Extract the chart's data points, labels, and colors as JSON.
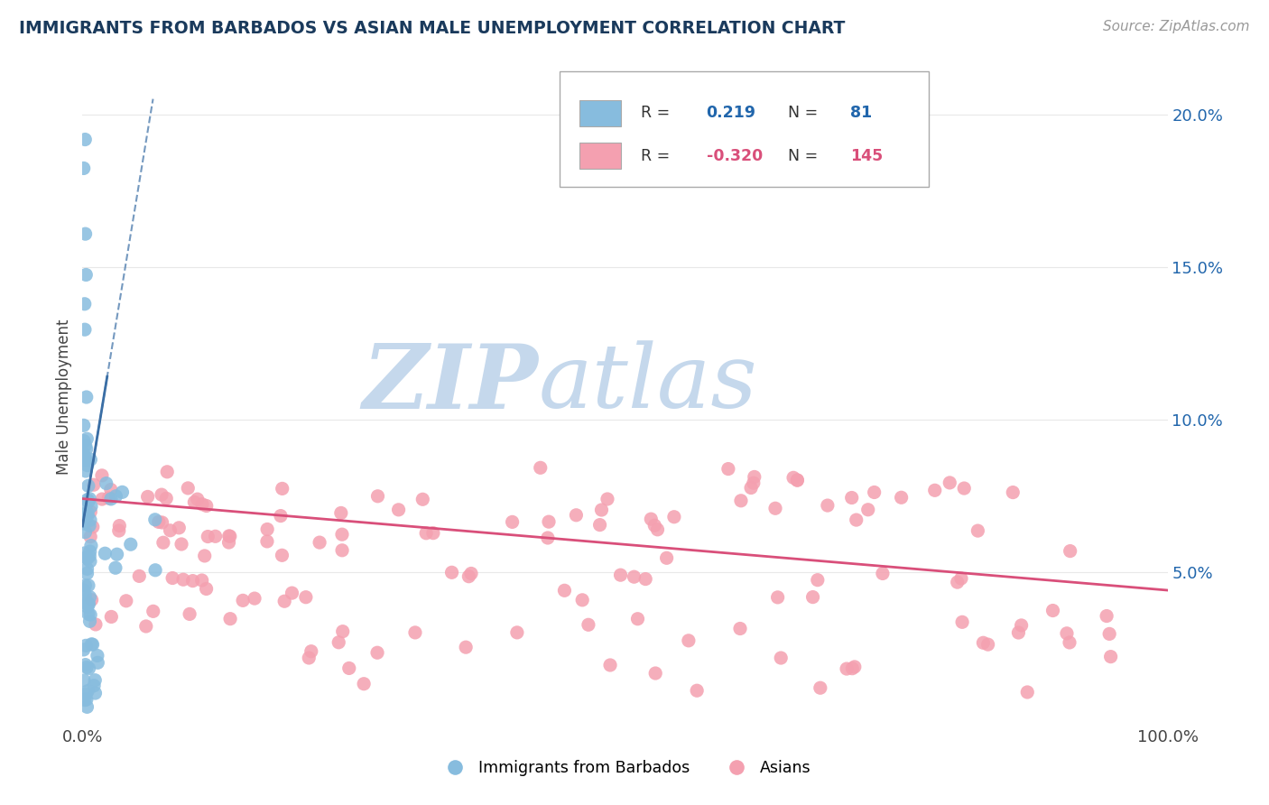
{
  "title": "IMMIGRANTS FROM BARBADOS VS ASIAN MALE UNEMPLOYMENT CORRELATION CHART",
  "source_text": "Source: ZipAtlas.com",
  "ylabel": "Male Unemployment",
  "xlim": [
    0,
    1.0
  ],
  "ylim": [
    0,
    0.215
  ],
  "yticks_right": [
    0.05,
    0.1,
    0.15,
    0.2
  ],
  "yticklabels_right": [
    "5.0%",
    "10.0%",
    "15.0%",
    "20.0%"
  ],
  "blue_color": "#87BCDE",
  "blue_line_color": "#3a6ea5",
  "pink_color": "#F4A0B0",
  "pink_line_color": "#d94f7a",
  "watermark_zip": "ZIP",
  "watermark_atlas": "atlas",
  "watermark_color": "#c5d8ec",
  "title_color": "#1a3a5c",
  "axis_color": "#444444",
  "grid_color": "#e8e8e8",
  "legend_label1": "Immigrants from Barbados",
  "legend_label2": "Asians",
  "blue_trend_x0": 0.0,
  "blue_trend_y0": 0.065,
  "blue_trend_x1": 0.065,
  "blue_trend_y1": 0.205,
  "pink_trend_x0": 0.0,
  "pink_trend_y0": 0.074,
  "pink_trend_x1": 1.0,
  "pink_trend_y1": 0.044
}
